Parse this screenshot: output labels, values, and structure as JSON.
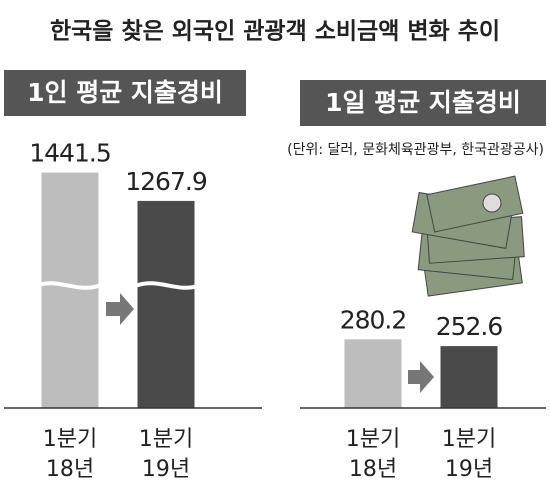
{
  "title": "한국을 찾은 외국인 관광객 소비금액 변화 추이",
  "source": "(단위: 달러, 문화체육관광부, 한국관광공사)",
  "chart_data": [
    {
      "type": "bar",
      "title": "1인 평균 지출경비",
      "categories": [
        [
          "1분기",
          "18년"
        ],
        [
          "1분기",
          "19년"
        ]
      ],
      "values": [
        1441.5,
        1267.9
      ],
      "colors": [
        "#bdbdbd",
        "#4a4a4a"
      ],
      "ylim": [
        0,
        1500
      ],
      "broken_axis": true
    },
    {
      "type": "bar",
      "title": "1일 평균 지출경비",
      "categories": [
        [
          "1분기",
          "18년"
        ],
        [
          "1분기",
          "19년"
        ]
      ],
      "values": [
        280.2,
        252.6
      ],
      "colors": [
        "#bdbdbd",
        "#4a4a4a"
      ],
      "ylim": [
        0,
        1000
      ],
      "broken_axis": false
    }
  ]
}
